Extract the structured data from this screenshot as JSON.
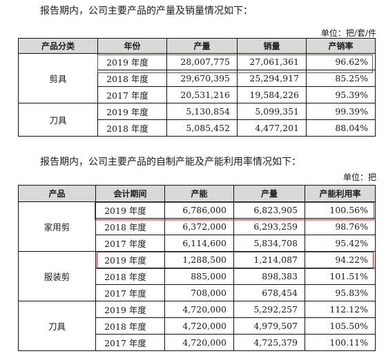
{
  "section1": {
    "intro": "报告期内，公司主要产品的产量及销量情况如下：",
    "unit": "单位：把/套/件",
    "headers": [
      "产品分类",
      "年份",
      "产量",
      "销量",
      "产销率"
    ],
    "groups": [
      {
        "category": "剪具",
        "rows": [
          {
            "year": "2019 年度",
            "output": "28,007,775",
            "sales": "27,061,361",
            "rate": "96.62%"
          },
          {
            "year": "2018 年度",
            "output": "29,670,395",
            "sales": "25,294,917",
            "rate": "85.25%"
          },
          {
            "year": "2017 年度",
            "output": "20,531,216",
            "sales": "19,584,226",
            "rate": "95.39%"
          }
        ]
      },
      {
        "category": "刀具",
        "rows": [
          {
            "year": "2019 年度",
            "output": "5,130,854",
            "sales": "5,099,351",
            "rate": "99.39%"
          },
          {
            "year": "2018 年度",
            "output": "5,085,452",
            "sales": "4,477,201",
            "rate": "88.04%"
          }
        ]
      }
    ]
  },
  "section2": {
    "intro": "报告期内，公司主要产品的自制产能及产能利用率情况如下：",
    "unit": "单位：把",
    "headers": [
      "产品",
      "会计期间",
      "产能",
      "产量",
      "产能利用率"
    ],
    "groups": [
      {
        "product": "家用剪",
        "rows": [
          {
            "period": "2019 年度",
            "capacity": "6,786,000",
            "output": "6,823,905",
            "util": "100.56%"
          },
          {
            "period": "2018 年度",
            "capacity": "6,372,000",
            "output": "6,293,259",
            "util": "98.76%"
          },
          {
            "period": "2017 年度",
            "capacity": "6,114,600",
            "output": "5,834,708",
            "util": "95.42%"
          }
        ]
      },
      {
        "product": "服装剪",
        "rows": [
          {
            "period": "2019 年度",
            "capacity": "1,288,500",
            "output": "1,214,087",
            "util": "94.22%"
          },
          {
            "period": "2018 年度",
            "capacity": "885,000",
            "output": "898,383",
            "util": "101.51%"
          },
          {
            "period": "2017 年度",
            "capacity": "708,000",
            "output": "678,454",
            "util": "95.83%"
          }
        ]
      },
      {
        "product": "刀具",
        "rows": [
          {
            "period": "2019 年度",
            "capacity": "4,720,000",
            "output": "5,292,257",
            "util": "112.12%"
          },
          {
            "period": "2018 年度",
            "capacity": "4,720,000",
            "output": "4,979,507",
            "util": "105.50%"
          },
          {
            "period": "2017 年度",
            "capacity": "4,720,000",
            "output": "4,725,379",
            "util": "100.11%"
          }
        ]
      }
    ]
  },
  "highlight_color": "#d9262b"
}
